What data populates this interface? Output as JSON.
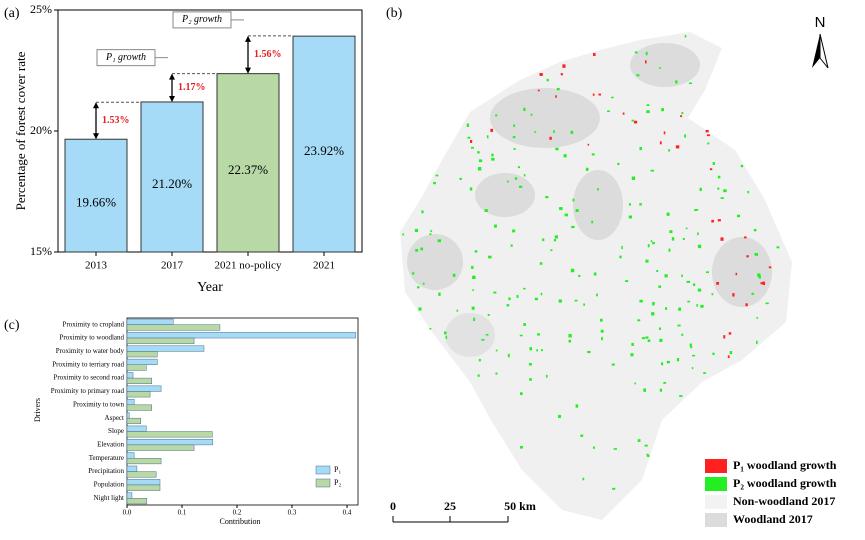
{
  "chart_data": [
    {
      "type": "bar",
      "panel_label": "(a)",
      "ylabel": "Percentage of forest cover rate",
      "xlabel": "Year",
      "categories": [
        "2013",
        "2017",
        "2021 no-policy",
        "2021"
      ],
      "values": [
        19.66,
        21.2,
        22.37,
        23.92
      ],
      "value_labels": [
        "19.66%",
        "21.20%",
        "22.37%",
        "23.92%"
      ],
      "colors": [
        "#a6dbf7",
        "#a6dbf7",
        "#b8d9a5",
        "#a6dbf7"
      ],
      "ylim": [
        15,
        25
      ],
      "yticks": [
        {
          "value": 15,
          "label": "15%"
        },
        {
          "value": 20,
          "label": "20%"
        },
        {
          "value": 25,
          "label": "25%"
        }
      ],
      "annotations": [
        {
          "value": 1.53,
          "label": "1.53%"
        },
        {
          "value": 1.17,
          "label": "1.17%",
          "tag": "P₁ growth"
        },
        {
          "value": 1.56,
          "label": "1.56%",
          "tag": "P₂ growth"
        }
      ]
    },
    {
      "type": "hbar",
      "panel_label": "(c)",
      "ylabel": "Drivers",
      "xlabel": "Contribution",
      "categories": [
        "Proximity to cropland",
        "Proximity to woodland",
        "Proximity to water body",
        "Proximity to terriary road",
        "Proximity to second road",
        "Proximity to primary road",
        "Proximity to town",
        "Aspect",
        "Slope",
        "Elevation",
        "Temperature",
        "Precipitation",
        "Population",
        "Night light"
      ],
      "series": [
        {
          "name": "P₁",
          "color": "#a6dbf7",
          "values": [
            0.084,
            0.416,
            0.14,
            0.055,
            0.011,
            0.062,
            0.013,
            0.004,
            0.035,
            0.156,
            0.013,
            0.018,
            0.06,
            0.009
          ]
        },
        {
          "name": "P₂",
          "color": "#b8d9a5",
          "values": [
            0.169,
            0.122,
            0.055,
            0.035,
            0.045,
            0.042,
            0.045,
            0.025,
            0.155,
            0.122,
            0.062,
            0.053,
            0.06,
            0.036
          ]
        }
      ],
      "xlim": [
        0,
        0.42
      ],
      "xticks": [
        {
          "value": 0,
          "label": "0.0"
        },
        0.1,
        0.2,
        0.3,
        0.4
      ]
    }
  ],
  "map": {
    "panel_label": "(b)",
    "north": "N",
    "legend": [
      {
        "label": "P₁ woodland growth",
        "color": "#ff2020"
      },
      {
        "label": "P₂ woodland growth",
        "color": "#22ee22"
      },
      {
        "label": "Non-woodland 2017",
        "color": "#f2f2f2"
      },
      {
        "label": "Woodland 2017",
        "color": "#dcdcdc"
      }
    ],
    "scale": [
      "0",
      "25",
      "50 km"
    ]
  }
}
